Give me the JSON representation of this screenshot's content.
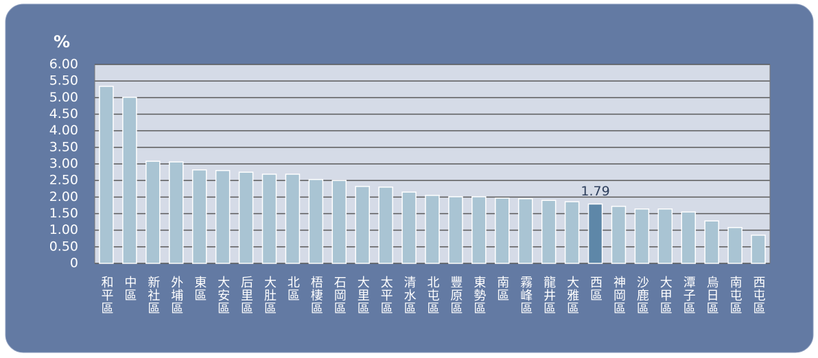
{
  "chart_data": {
    "type": "bar",
    "y_label": "%",
    "categories": [
      "和平區",
      "中區",
      "新社區",
      "外埔區",
      "東區",
      "大安區",
      "后里區",
      "大肚區",
      "北區",
      "梧棲區",
      "石岡區",
      "大里區",
      "太平區",
      "清水區",
      "北屯區",
      "豐原區",
      "東勢區",
      "南區",
      "霧峰區",
      "龍井區",
      "大雅區",
      "西區",
      "神岡區",
      "沙鹿區",
      "大甲區",
      "潭子區",
      "烏日區",
      "南屯區",
      "西屯區"
    ],
    "values": [
      5.34,
      5.01,
      3.08,
      3.06,
      2.82,
      2.8,
      2.75,
      2.69,
      2.69,
      2.53,
      2.5,
      2.32,
      2.3,
      2.15,
      2.05,
      2.01,
      2.01,
      1.97,
      1.95,
      1.9,
      1.86,
      1.79,
      1.72,
      1.64,
      1.64,
      1.55,
      1.28,
      1.08,
      0.85
    ],
    "value_labels": [
      null,
      null,
      null,
      null,
      null,
      null,
      null,
      null,
      null,
      null,
      null,
      null,
      null,
      null,
      null,
      null,
      null,
      null,
      null,
      null,
      null,
      "1.79",
      null,
      null,
      null,
      null,
      null,
      null,
      null
    ],
    "colors": [
      "#a9c4d3",
      "#a9c4d3",
      "#a9c4d3",
      "#a9c4d3",
      "#a9c4d3",
      "#a9c4d3",
      "#a9c4d3",
      "#a9c4d3",
      "#a9c4d3",
      "#a9c4d3",
      "#a9c4d3",
      "#a9c4d3",
      "#a9c4d3",
      "#a9c4d3",
      "#a9c4d3",
      "#a9c4d3",
      "#a9c4d3",
      "#a9c4d3",
      "#a9c4d3",
      "#a9c4d3",
      "#a9c4d3",
      "#5e87a8",
      "#a9c4d3",
      "#a9c4d3",
      "#a9c4d3",
      "#a9c4d3",
      "#a9c4d3",
      "#a9c4d3",
      "#a9c4d3"
    ],
    "ylim": [
      0,
      6
    ],
    "yticks": [
      0,
      {
        "value": 0.5,
        "label": "0.50"
      },
      {
        "value": 1,
        "label": "1.00"
      },
      {
        "value": 1.5,
        "label": "1.50"
      },
      {
        "value": 2,
        "label": "2.00"
      },
      {
        "value": 2.5,
        "label": "2.50"
      },
      {
        "value": 3,
        "label": "3.00"
      },
      {
        "value": 3.5,
        "label": "3.50"
      },
      {
        "value": 4,
        "label": "4.00"
      },
      {
        "value": 4.5,
        "label": "4.50"
      },
      {
        "value": 5,
        "label": "5.00"
      },
      {
        "value": 5.5,
        "label": "5.50"
      },
      {
        "value": 6,
        "label": "6.00"
      }
    ],
    "grid": true
  }
}
